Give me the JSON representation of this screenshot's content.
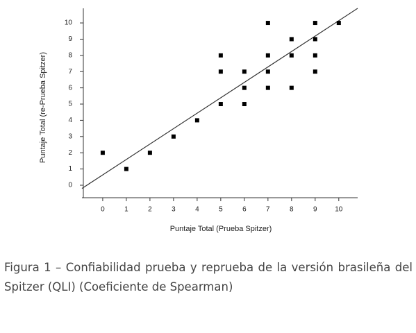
{
  "chart_data": {
    "type": "scatter",
    "x_label": "Puntaje Total (Prueba Spitzer)",
    "y_label": "Puntaje Total (re-Prueba Spitzer)",
    "x": [
      0,
      1,
      2,
      3,
      4,
      5,
      5,
      5,
      6,
      6,
      6,
      7,
      7,
      7,
      7,
      8,
      8,
      8,
      9,
      9,
      9,
      9,
      10
    ],
    "y": [
      2,
      1,
      2,
      3,
      4,
      8,
      7,
      5,
      7,
      6,
      5,
      10,
      8,
      7,
      6,
      9,
      8,
      6,
      10,
      9,
      8,
      7,
      10
    ],
    "color": "#000000",
    "fit_line": {
      "x": [
        -0.88,
        10.8
      ],
      "y": [
        -0.2,
        10.9
      ]
    },
    "xlim": [
      -0.88,
      10.8
    ],
    "ylim": [
      -0.77,
      10.9
    ],
    "xticks": [
      0,
      1,
      2,
      3,
      4,
      5,
      6,
      7,
      8,
      9,
      10
    ],
    "yticks": [
      0,
      1,
      2,
      3,
      4,
      5,
      6,
      7,
      8,
      9,
      10
    ]
  },
  "caption": "Figura 1 – Confiabilidad prueba y reprueba de la versión brasileña del Spitzer (QLI) (Coeficiente de Spearman)"
}
